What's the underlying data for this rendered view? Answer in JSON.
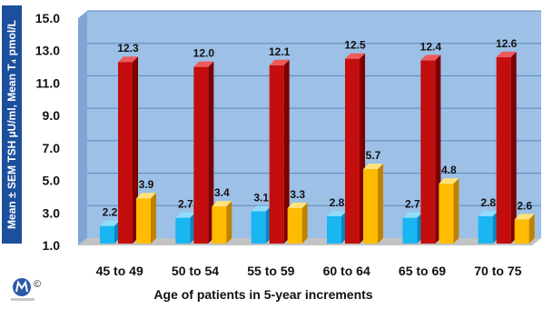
{
  "chart_data": {
    "type": "bar",
    "ylabel": "Mean ± SEM TSH µU/ml, Mean T₄ pmol/L",
    "xlabel": "Age of patients in 5-year increments",
    "categories": [
      "45 to 49",
      "50 to 54",
      "55 to 59",
      "60 to 64",
      "65 to 69",
      "70 to 75"
    ],
    "series": [
      {
        "values": [
          2.2,
          2.7,
          3.1,
          2.8,
          2.7,
          2.8
        ]
      },
      {
        "values": [
          12.3,
          12.0,
          12.1,
          12.5,
          12.4,
          12.6
        ]
      },
      {
        "values": [
          3.9,
          3.4,
          3.3,
          5.7,
          4.8,
          2.6
        ]
      }
    ],
    "value_labels": [
      [
        "2.2",
        "2.7",
        "3.1",
        "2.8",
        "2.7",
        "2.8"
      ],
      [
        "12.3",
        "12.0",
        "12.1",
        "12.5",
        "12.4",
        "12.6"
      ],
      [
        "3.9",
        "3.4",
        "3.3",
        "5.7",
        "4.8",
        "2.6"
      ]
    ],
    "yticks": [
      "1.0",
      "3.0",
      "5.0",
      "7.0",
      "9.0",
      "11.0",
      "13.0",
      "15.0"
    ],
    "ylim": [
      1,
      15
    ],
    "grid": true,
    "legend": "none"
  },
  "colors": {
    "plot_background": "#9cc0e6",
    "floor": "#c3c3c3",
    "grid": "#5f87bc",
    "ylabel_box": "#1c4f9c",
    "series": [
      {
        "front": "#19b6f2",
        "top": "#8fdcfb",
        "side": "#0a86bf"
      },
      {
        "front": "#c40d0d",
        "top": "#ee5a5a",
        "side": "#7d0000"
      },
      {
        "front": "#ffbb00",
        "top": "#ffe27a",
        "side": "#bf8200"
      }
    ]
  },
  "logo": {
    "copyright_mark": "©"
  }
}
